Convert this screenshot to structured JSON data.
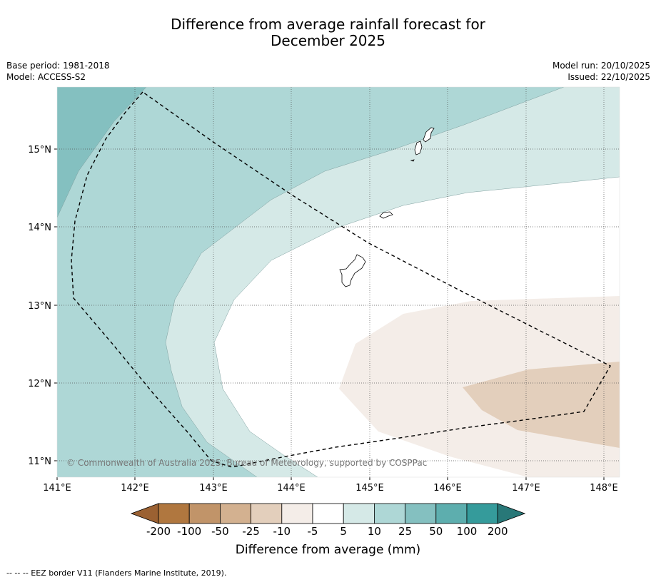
{
  "title_line1": "Difference from average rainfall forecast for",
  "title_line2": "December 2025",
  "meta": {
    "base_period": "Base period: 1981-2018",
    "model": "Model: ACCESS-S2",
    "model_run": "Model run: 20/10/2025",
    "issued": "Issued: 22/10/2025"
  },
  "map": {
    "lon_labels": [
      "141°E",
      "142°E",
      "143°E",
      "144°E",
      "145°E",
      "146°E",
      "147°E",
      "148°E"
    ],
    "lat_labels": [
      "15°N",
      "14°N",
      "13°N",
      "12°N",
      "11°N"
    ],
    "copyright": "© Commonwealth of Australia 2025, Bureau of Meteorology, supported by COSPPac"
  },
  "colorbar": {
    "labels": [
      "-200",
      "-100",
      "-50",
      "-25",
      "-10",
      "-5",
      "5",
      "10",
      "25",
      "50",
      "100",
      "200"
    ],
    "colors": [
      "#9b6132",
      "#b0773f",
      "#c19469",
      "#d3b190",
      "#e3cfbc",
      "#f4ede8",
      "#ffffff",
      "#d5e9e7",
      "#aed7d6",
      "#84c0c0",
      "#5daeae",
      "#359b9b",
      "#287878"
    ],
    "title": "Difference from average (mm)"
  },
  "footer": "--  --  -- EEZ border V11 (Flanders Marine Institute, 2019)."
}
